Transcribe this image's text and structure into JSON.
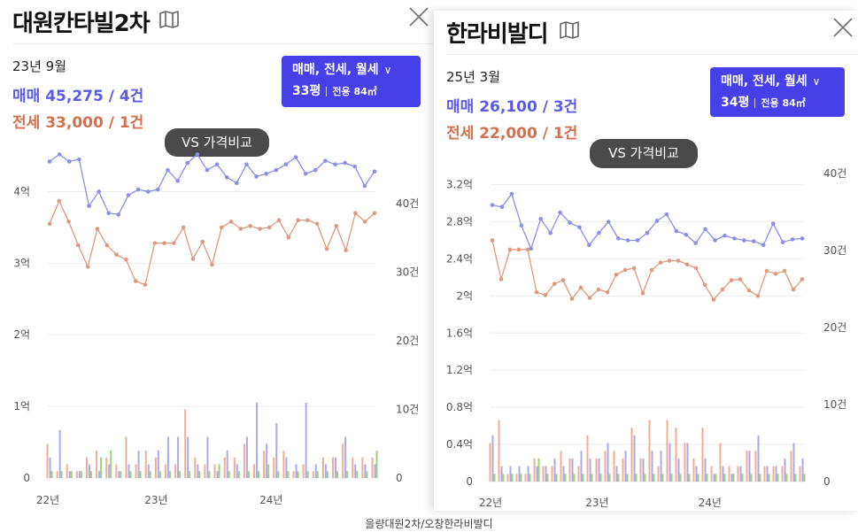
{
  "panels": [
    {
      "title": "대원칸타빌2차",
      "date": "23년 9월",
      "sale": "매매 45,275 / 4건",
      "jeonse": "전세 33,000 / 1건",
      "selector": {
        "types": "매매, 전세, 월세",
        "pyeong": "33평",
        "area": "전용 84㎡"
      },
      "vs_label": "VS 가격비교",
      "chart_data": {
        "type": "line",
        "y_left_ticks": [
          "0",
          "1억",
          "2억",
          "3억",
          "4억"
        ],
        "y_left_range": [
          0,
          4.5
        ],
        "y_right_ticks": [
          "0",
          "10건",
          "20건",
          "30건",
          "40건"
        ],
        "y_right_range": [
          0,
          47
        ],
        "x_ticks": [
          "22년",
          "23년",
          "24년"
        ],
        "sale_color": "#8c8fe8",
        "jeonse_color": "#df9a7f",
        "sale_series": [
          4.42,
          4.52,
          4.42,
          4.45,
          3.8,
          4.0,
          3.7,
          3.68,
          3.95,
          4.03,
          4.0,
          4.03,
          4.3,
          4.15,
          4.4,
          4.52,
          4.3,
          4.38,
          4.2,
          4.12,
          4.38,
          4.21,
          4.25,
          4.3,
          4.38,
          4.48,
          4.25,
          4.3,
          4.43,
          4.38,
          4.4,
          4.35,
          4.08,
          4.28
        ],
        "jeonse_series": [
          3.55,
          3.87,
          3.58,
          3.25,
          2.95,
          3.48,
          3.25,
          3.12,
          3.05,
          2.75,
          2.7,
          3.28,
          3.28,
          3.28,
          3.5,
          3.06,
          3.3,
          2.98,
          3.5,
          3.58,
          3.48,
          3.52,
          3.48,
          3.5,
          3.6,
          3.36,
          3.6,
          3.6,
          3.55,
          3.2,
          3.52,
          3.18,
          3.7,
          3.58,
          3.7
        ],
        "sale_volume": [
          3,
          7,
          1,
          1,
          2,
          1,
          2,
          1,
          2,
          4,
          2,
          4,
          6,
          6,
          6,
          2,
          6,
          1,
          4,
          2,
          6,
          11,
          5,
          8,
          3,
          2,
          11,
          2,
          2,
          3,
          6,
          2,
          2,
          2
        ],
        "jeonse_volume": [
          5,
          1,
          2,
          1,
          3,
          4,
          3,
          2,
          6,
          2,
          4,
          3,
          2,
          2,
          10,
          3,
          2,
          2,
          3,
          3,
          5,
          2,
          4,
          3,
          4,
          1,
          2,
          1,
          3,
          3,
          5,
          3,
          3,
          3
        ],
        "other_volume": [
          1,
          1,
          1,
          1,
          1,
          3,
          4,
          1,
          1,
          1,
          1,
          1,
          1,
          1,
          1,
          1,
          1,
          2,
          1,
          1,
          1,
          1,
          2,
          1,
          1,
          1,
          1,
          1,
          1,
          1,
          1,
          1,
          1,
          4
        ]
      }
    },
    {
      "title": "한라비발디",
      "date": "25년 3월",
      "sale": "매매 26,100 / 3건",
      "jeonse": "전세 22,000 / 1건",
      "selector": {
        "types": "매매, 전세, 월세",
        "pyeong": "34평",
        "area": "전용 84㎡"
      },
      "vs_label": "VS 가격비교",
      "chart_data": {
        "type": "line",
        "y_left_ticks": [
          "0",
          "0.4억",
          "0.8억",
          "1.2억",
          "1.6억",
          "2억",
          "2.4억",
          "2.8억",
          "3.2억"
        ],
        "y_left_range": [
          0,
          3.32
        ],
        "y_right_ticks": [
          "0",
          "10건",
          "20건",
          "30건",
          "40건"
        ],
        "y_right_range": [
          0,
          40
        ],
        "x_ticks": [
          "22년",
          "23년",
          "24년"
        ],
        "sale_color": "#8c8fe8",
        "jeonse_color": "#df9a7f",
        "sale_series": [
          2.98,
          2.96,
          3.1,
          2.76,
          2.51,
          2.83,
          2.68,
          2.9,
          2.79,
          2.74,
          2.55,
          2.68,
          2.8,
          2.62,
          2.6,
          2.6,
          2.68,
          2.81,
          2.88,
          2.7,
          2.66,
          2.57,
          2.72,
          2.6,
          2.65,
          2.62,
          2.6,
          2.59,
          2.55,
          2.78,
          2.58,
          2.61,
          2.62
        ],
        "jeonse_series": [
          2.6,
          2.18,
          2.5,
          2.5,
          2.5,
          2.04,
          2.01,
          2.13,
          2.17,
          1.97,
          2.09,
          1.98,
          2.07,
          2.04,
          2.23,
          2.28,
          2.3,
          2.03,
          2.28,
          2.36,
          2.38,
          2.38,
          2.34,
          2.3,
          2.12,
          1.96,
          2.07,
          2.17,
          2.18,
          2.06,
          2.0,
          2.27,
          2.24,
          2.27,
          2.07,
          2.18
        ],
        "sale_volume": [
          6,
          2,
          2,
          2,
          2,
          2,
          2,
          3,
          2,
          3,
          4,
          3,
          3,
          5,
          2,
          4,
          6,
          3,
          4,
          4,
          5,
          3,
          5,
          2,
          3,
          1,
          2,
          1,
          2,
          4,
          6,
          2,
          2,
          3,
          5,
          3
        ],
        "jeonse_volume": [
          5,
          8,
          1,
          1,
          1,
          3,
          2,
          2,
          4,
          3,
          2,
          6,
          3,
          4,
          4,
          3,
          7,
          3,
          8,
          2,
          8,
          7,
          5,
          3,
          7,
          2,
          5,
          2,
          2,
          4,
          4,
          2,
          2,
          2,
          4,
          2
        ],
        "other_volume": [
          1,
          1,
          1,
          1,
          1,
          3,
          1,
          1,
          1,
          1,
          1,
          1,
          1,
          1,
          1,
          1,
          1,
          1,
          1,
          1,
          1,
          1,
          1,
          1,
          1,
          1,
          1,
          1,
          1,
          1,
          1,
          1,
          1,
          1,
          1,
          1
        ]
      }
    }
  ],
  "caption": "을량대원2차/오창한라비발디"
}
